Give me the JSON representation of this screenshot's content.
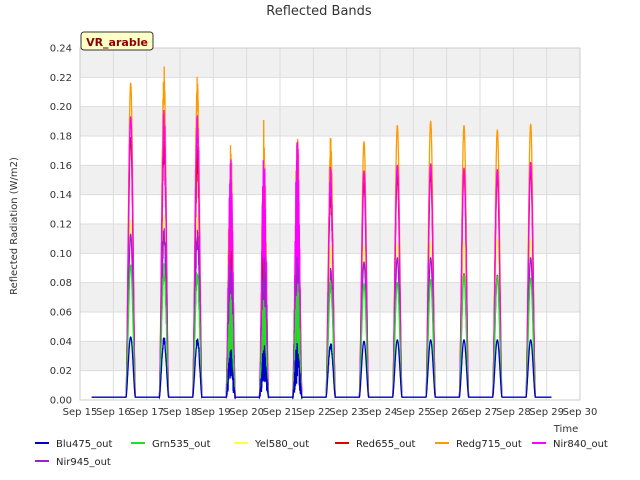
{
  "chart_data": {
    "type": "line",
    "title": "Reflected Bands",
    "xlabel": "Time",
    "ylabel": "Reflected Radiation (W/m2)",
    "ylim": [
      0.0,
      0.24
    ],
    "yticks": [
      "0.00",
      "0.02",
      "0.04",
      "0.06",
      "0.08",
      "0.10",
      "0.12",
      "0.14",
      "0.16",
      "0.18",
      "0.20",
      "0.22",
      "0.24"
    ],
    "xticks": [
      "Sep 15",
      "Sep 16",
      "Sep 17",
      "Sep 18",
      "Sep 19",
      "Sep 20",
      "Sep 21",
      "Sep 22",
      "Sep 23",
      "Sep 24",
      "Sep 25",
      "Sep 26",
      "Sep 27",
      "Sep 28",
      "Sep 29",
      "Sep 30"
    ],
    "xlim_days": [
      15,
      30
    ],
    "grid": true,
    "legend_position": "bottom",
    "annotation": "VR_arable",
    "day_peaks": [
      {
        "day": "Sep 15",
        "kind": "none"
      },
      {
        "day": "Sep 16",
        "kind": "normal",
        "peak": {
          "Blu475_out": 0.043,
          "Grn535_out": 0.092,
          "Yel580_out": 0.123,
          "Red655_out": 0.179,
          "Redg715_out": 0.216,
          "Nir840_out": 0.193,
          "Nir945_out": 0.113
        }
      },
      {
        "day": "Sep 17",
        "kind": "noisy",
        "peak": {
          "Blu475_out": 0.044,
          "Grn535_out": 0.094,
          "Yel580_out": 0.127,
          "Red655_out": 0.185,
          "Redg715_out": 0.229,
          "Nir840_out": 0.2,
          "Nir945_out": 0.118
        }
      },
      {
        "day": "Sep 18",
        "kind": "noisy",
        "peak": {
          "Blu475_out": 0.043,
          "Grn535_out": 0.09,
          "Yel580_out": 0.127,
          "Red655_out": 0.175,
          "Redg715_out": 0.223,
          "Nir840_out": 0.2,
          "Nir945_out": 0.118
        }
      },
      {
        "day": "Sep 19",
        "kind": "cloudy",
        "peak": {
          "Blu475_out": 0.036,
          "Grn535_out": 0.073,
          "Yel580_out": 0.1,
          "Red655_out": 0.15,
          "Redg715_out": 0.178,
          "Nir840_out": 0.166,
          "Nir945_out": 0.097
        }
      },
      {
        "day": "Sep 20",
        "kind": "cloudy",
        "peak": {
          "Blu475_out": 0.038,
          "Grn535_out": 0.07,
          "Yel580_out": 0.102,
          "Red655_out": 0.145,
          "Redg715_out": 0.194,
          "Nir840_out": 0.178,
          "Nir945_out": 0.101
        }
      },
      {
        "day": "Sep 21",
        "kind": "cloudy",
        "peak": {
          "Blu475_out": 0.041,
          "Grn535_out": 0.083,
          "Yel580_out": 0.119,
          "Red655_out": 0.165,
          "Redg715_out": 0.192,
          "Nir840_out": 0.18,
          "Nir945_out": 0.101
        }
      },
      {
        "day": "Sep 22",
        "kind": "noisy",
        "peak": {
          "Blu475_out": 0.04,
          "Grn535_out": 0.084,
          "Yel580_out": 0.108,
          "Red655_out": 0.15,
          "Redg715_out": 0.18,
          "Nir840_out": 0.161,
          "Nir945_out": 0.091
        }
      },
      {
        "day": "Sep 23",
        "kind": "normal",
        "peak": {
          "Blu475_out": 0.04,
          "Grn535_out": 0.079,
          "Yel580_out": 0.105,
          "Red655_out": 0.148,
          "Redg715_out": 0.176,
          "Nir840_out": 0.156,
          "Nir945_out": 0.094
        }
      },
      {
        "day": "Sep 24",
        "kind": "normal",
        "peak": {
          "Blu475_out": 0.041,
          "Grn535_out": 0.08,
          "Yel580_out": 0.107,
          "Red655_out": 0.153,
          "Redg715_out": 0.187,
          "Nir840_out": 0.16,
          "Nir945_out": 0.097
        }
      },
      {
        "day": "Sep 25",
        "kind": "normal",
        "peak": {
          "Blu475_out": 0.041,
          "Grn535_out": 0.082,
          "Yel580_out": 0.108,
          "Red655_out": 0.155,
          "Redg715_out": 0.19,
          "Nir840_out": 0.161,
          "Nir945_out": 0.097
        }
      },
      {
        "day": "Sep 26",
        "kind": "normal",
        "peak": {
          "Blu475_out": 0.041,
          "Grn535_out": 0.085,
          "Yel580_out": 0.108,
          "Red655_out": 0.156,
          "Redg715_out": 0.187,
          "Nir840_out": 0.158,
          "Nir945_out": 0.086
        }
      },
      {
        "day": "Sep 27",
        "kind": "normal",
        "peak": {
          "Blu475_out": 0.041,
          "Grn535_out": 0.084,
          "Yel580_out": 0.11,
          "Red655_out": 0.153,
          "Redg715_out": 0.184,
          "Nir840_out": 0.157,
          "Nir945_out": 0.085
        }
      },
      {
        "day": "Sep 28",
        "kind": "normal",
        "peak": {
          "Blu475_out": 0.041,
          "Grn535_out": 0.083,
          "Yel580_out": 0.11,
          "Red655_out": 0.157,
          "Redg715_out": 0.188,
          "Nir840_out": 0.162,
          "Nir945_out": 0.097
        }
      },
      {
        "day": "Sep 29",
        "kind": "normal",
        "peak": {
          "Blu475_out": 0.041,
          "Grn535_out": 0.083,
          "Yel580_out": 0.109,
          "Red655_out": 0.156,
          "Redg715_out": 0.182,
          "Nir840_out": 0.158,
          "Nir945_out": 0.091
        }
      }
    ],
    "baseline": 0.002,
    "series": [
      {
        "name": "Blu475_out",
        "color": "#0000cc"
      },
      {
        "name": "Grn535_out",
        "color": "#22dd22"
      },
      {
        "name": "Yel580_out",
        "color": "#ffff44"
      },
      {
        "name": "Red655_out",
        "color": "#dd0000"
      },
      {
        "name": "Redg715_out",
        "color": "#ff9900"
      },
      {
        "name": "Nir840_out",
        "color": "#ff00ff"
      },
      {
        "name": "Nir945_out",
        "color": "#9922cc"
      }
    ]
  }
}
